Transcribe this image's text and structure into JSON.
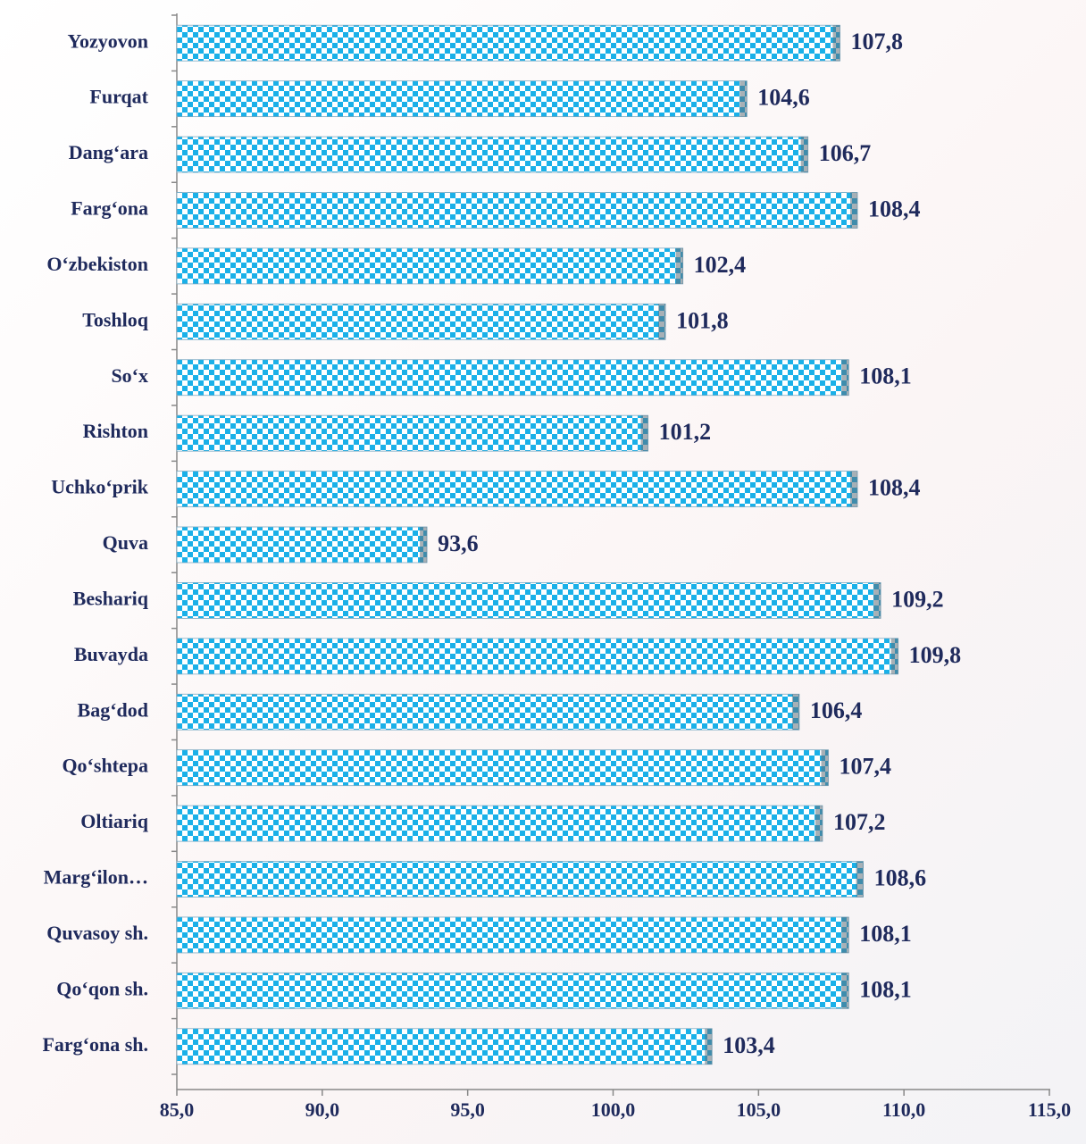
{
  "chart_data": {
    "type": "bar",
    "orientation": "horizontal",
    "categories": [
      "Yozyovon",
      "Furqat",
      "Dang‘ara",
      "Farg‘ona",
      "O‘zbekiston",
      "Toshloq",
      "So‘x",
      "Rishton",
      "Uchko‘prik",
      "Quva",
      "Beshariq",
      "Buvayda",
      "Bag‘dod",
      "Qo‘shtepa",
      "Oltiariq",
      "Marg‘ilon…",
      "Quvasoy sh.",
      "Qo‘qon sh.",
      "Farg‘ona sh."
    ],
    "values": [
      107.8,
      104.6,
      106.7,
      108.4,
      102.4,
      101.8,
      108.1,
      101.2,
      108.4,
      93.6,
      109.2,
      109.8,
      106.4,
      107.4,
      107.2,
      108.6,
      108.1,
      108.1,
      103.4
    ],
    "value_labels": [
      "107,8",
      "104,6",
      "106,7",
      "108,4",
      "102,4",
      "101,8",
      "108,1",
      "101,2",
      "108,4",
      "93,6",
      "109,2",
      "109,8",
      "106,4",
      "107,4",
      "107,2",
      "108,6",
      "108,1",
      "108,1",
      "103,4"
    ],
    "color": "#1ab0e8",
    "xlim": [
      85,
      115
    ],
    "xticks": [
      {
        "value": 85,
        "label": "85,0"
      },
      {
        "value": 90,
        "label": "90,0"
      },
      {
        "value": 95,
        "label": "95,0"
      },
      {
        "value": 100,
        "label": "100,0"
      },
      {
        "value": 105,
        "label": "105,0"
      },
      {
        "value": 110,
        "label": "110,0"
      },
      {
        "value": 115,
        "label": "115,0"
      }
    ],
    "grid": false
  }
}
